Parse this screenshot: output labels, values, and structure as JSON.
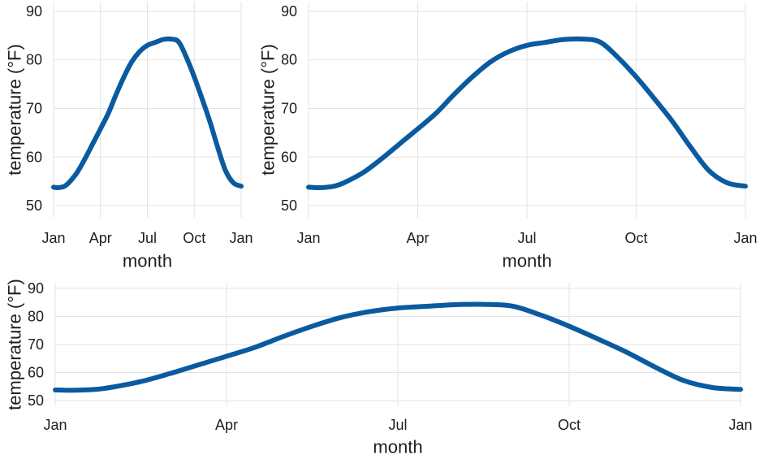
{
  "chart_data": [
    {
      "type": "line",
      "xlabel": "month",
      "ylabel": "temperature (°F)",
      "x_ticks": [
        {
          "label": "Jan",
          "value": 1
        },
        {
          "label": "Apr",
          "value": 4
        },
        {
          "label": "Jul",
          "value": 7
        },
        {
          "label": "Oct",
          "value": 10
        },
        {
          "label": "Jan",
          "value": 13
        }
      ],
      "y_ticks": [
        50,
        60,
        70,
        80,
        90
      ],
      "xlim": [
        1,
        13
      ],
      "ylim": [
        47.5,
        92
      ],
      "grid": true,
      "series": [
        {
          "color": "#0a5aa0",
          "x": [
            1.0,
            1.3,
            1.7,
            2.0,
            2.5,
            3.0,
            3.5,
            4.0,
            4.5,
            5.0,
            5.5,
            6.0,
            6.5,
            7.0,
            7.5,
            8.0,
            8.5,
            9.0,
            9.5,
            10.0,
            10.5,
            11.0,
            11.5,
            12.0,
            12.5,
            13.0
          ],
          "y": [
            53.8,
            53.7,
            54.0,
            54.8,
            56.8,
            59.6,
            62.7,
            65.8,
            69.0,
            72.9,
            76.5,
            79.6,
            81.7,
            83.0,
            83.6,
            84.2,
            84.3,
            83.7,
            80.5,
            76.5,
            72.0,
            67.3,
            62.0,
            57.2,
            54.7,
            54.0
          ]
        }
      ]
    },
    {
      "type": "line",
      "xlabel": "month",
      "ylabel": "temperature (°F)",
      "x_ticks": [
        {
          "label": "Jan",
          "value": 1
        },
        {
          "label": "Apr",
          "value": 4
        },
        {
          "label": "Jul",
          "value": 7
        },
        {
          "label": "Oct",
          "value": 10
        },
        {
          "label": "Jan",
          "value": 13
        }
      ],
      "y_ticks": [
        50,
        60,
        70,
        80,
        90
      ],
      "xlim": [
        1,
        13
      ],
      "ylim": [
        47.5,
        92
      ],
      "grid": true,
      "series": [
        {
          "color": "#0a5aa0",
          "x": [
            1.0,
            1.3,
            1.7,
            2.0,
            2.5,
            3.0,
            3.5,
            4.0,
            4.5,
            5.0,
            5.5,
            6.0,
            6.5,
            7.0,
            7.5,
            8.0,
            8.5,
            9.0,
            9.5,
            10.0,
            10.5,
            11.0,
            11.5,
            12.0,
            12.5,
            13.0
          ],
          "y": [
            53.8,
            53.7,
            54.0,
            54.8,
            56.8,
            59.6,
            62.7,
            65.8,
            69.0,
            72.9,
            76.5,
            79.6,
            81.7,
            83.0,
            83.6,
            84.2,
            84.3,
            83.7,
            80.5,
            76.5,
            72.0,
            67.3,
            62.0,
            57.2,
            54.7,
            54.0
          ]
        }
      ]
    },
    {
      "type": "line",
      "xlabel": "month",
      "ylabel": "temperature (°F)",
      "x_ticks": [
        {
          "label": "Jan",
          "value": 1
        },
        {
          "label": "Apr",
          "value": 4
        },
        {
          "label": "Jul",
          "value": 7
        },
        {
          "label": "Oct",
          "value": 10
        },
        {
          "label": "Jan",
          "value": 13
        }
      ],
      "y_ticks": [
        50,
        60,
        70,
        80,
        90
      ],
      "xlim": [
        1,
        13
      ],
      "ylim": [
        48,
        92
      ],
      "grid": true,
      "series": [
        {
          "color": "#0a5aa0",
          "x": [
            1.0,
            1.3,
            1.7,
            2.0,
            2.5,
            3.0,
            3.5,
            4.0,
            4.5,
            5.0,
            5.5,
            6.0,
            6.5,
            7.0,
            7.5,
            8.0,
            8.5,
            9.0,
            9.5,
            10.0,
            10.5,
            11.0,
            11.5,
            12.0,
            12.5,
            13.0
          ],
          "y": [
            53.8,
            53.7,
            54.0,
            54.8,
            56.8,
            59.6,
            62.7,
            65.8,
            69.0,
            72.9,
            76.5,
            79.6,
            81.7,
            83.0,
            83.6,
            84.2,
            84.3,
            83.7,
            80.5,
            76.5,
            72.0,
            67.3,
            62.0,
            57.2,
            54.7,
            54.0
          ]
        }
      ]
    }
  ]
}
